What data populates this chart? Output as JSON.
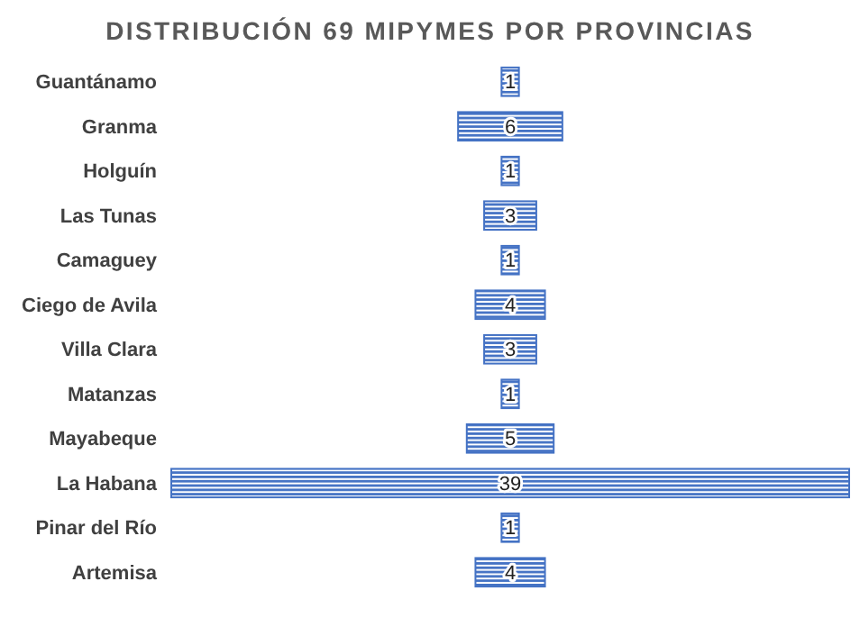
{
  "chart_data": {
    "type": "other",
    "title": "DISTRIBUCIÓN 69 MIPYMES POR PROVINCIAS",
    "categories": [
      "Guantánamo",
      "Granma",
      "Holguín",
      "Las Tunas",
      "Camaguey",
      "Ciego de Avila",
      "Villa Clara",
      "Matanzas",
      "Mayabeque",
      "La Habana",
      "Pinar del Río",
      "Artemisa"
    ],
    "values": [
      1,
      6,
      1,
      3,
      1,
      4,
      3,
      1,
      5,
      39,
      1,
      4
    ],
    "color": "#4472c4",
    "data_labels": true
  }
}
